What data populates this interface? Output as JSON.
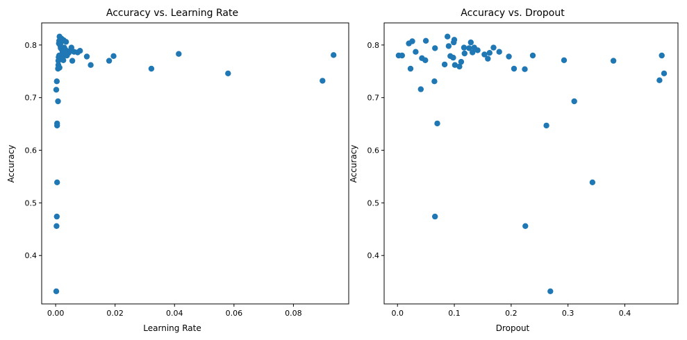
{
  "chart_data": [
    {
      "type": "scatter",
      "title": "Accuracy vs. Learning Rate",
      "xlabel": "Learning Rate",
      "ylabel": "Accuracy",
      "xlim": [
        -0.0047,
        0.0986
      ],
      "ylim": [
        0.308,
        0.842
      ],
      "xticks": [
        0.0,
        0.02,
        0.04,
        0.06,
        0.08
      ],
      "xtick_labels": [
        "0.00",
        "0.02",
        "0.04",
        "0.06",
        "0.08"
      ],
      "yticks": [
        0.4,
        0.5,
        0.6,
        0.7,
        0.8
      ],
      "ytick_labels": [
        "0.4",
        "0.5",
        "0.6",
        "0.7",
        "0.8"
      ],
      "grid": false,
      "color": "#1f77b4",
      "points": [
        {
          "x": 0.0002,
          "y": 0.332
        },
        {
          "x": 0.0003,
          "y": 0.456
        },
        {
          "x": 0.0004,
          "y": 0.474
        },
        {
          "x": 0.0005,
          "y": 0.539
        },
        {
          "x": 0.0005,
          "y": 0.647
        },
        {
          "x": 0.0005,
          "y": 0.651
        },
        {
          "x": 0.0008,
          "y": 0.693
        },
        {
          "x": 0.0002,
          "y": 0.715
        },
        {
          "x": 0.0004,
          "y": 0.731
        },
        {
          "x": 0.0008,
          "y": 0.755
        },
        {
          "x": 0.0009,
          "y": 0.762
        },
        {
          "x": 0.0009,
          "y": 0.77
        },
        {
          "x": 0.001,
          "y": 0.777
        },
        {
          "x": 0.0012,
          "y": 0.78
        },
        {
          "x": 0.0013,
          "y": 0.773
        },
        {
          "x": 0.0013,
          "y": 0.757
        },
        {
          "x": 0.0011,
          "y": 0.803
        },
        {
          "x": 0.0012,
          "y": 0.808
        },
        {
          "x": 0.0013,
          "y": 0.816
        },
        {
          "x": 0.0016,
          "y": 0.798
        },
        {
          "x": 0.0017,
          "y": 0.794
        },
        {
          "x": 0.0018,
          "y": 0.805
        },
        {
          "x": 0.002,
          "y": 0.812
        },
        {
          "x": 0.0022,
          "y": 0.79
        },
        {
          "x": 0.0023,
          "y": 0.785
        },
        {
          "x": 0.0024,
          "y": 0.776
        },
        {
          "x": 0.0026,
          "y": 0.771
        },
        {
          "x": 0.0027,
          "y": 0.809
        },
        {
          "x": 0.0028,
          "y": 0.782
        },
        {
          "x": 0.0029,
          "y": 0.795
        },
        {
          "x": 0.0031,
          "y": 0.786
        },
        {
          "x": 0.0033,
          "y": 0.791
        },
        {
          "x": 0.0035,
          "y": 0.806
        },
        {
          "x": 0.0038,
          "y": 0.78
        },
        {
          "x": 0.0041,
          "y": 0.788
        },
        {
          "x": 0.0044,
          "y": 0.785
        },
        {
          "x": 0.005,
          "y": 0.789
        },
        {
          "x": 0.0053,
          "y": 0.795
        },
        {
          "x": 0.0056,
          "y": 0.77
        },
        {
          "x": 0.0062,
          "y": 0.787
        },
        {
          "x": 0.0074,
          "y": 0.786
        },
        {
          "x": 0.0082,
          "y": 0.789
        },
        {
          "x": 0.0105,
          "y": 0.778
        },
        {
          "x": 0.0118,
          "y": 0.762
        },
        {
          "x": 0.018,
          "y": 0.77
        },
        {
          "x": 0.0195,
          "y": 0.779
        },
        {
          "x": 0.0322,
          "y": 0.755
        },
        {
          "x": 0.0414,
          "y": 0.783
        },
        {
          "x": 0.058,
          "y": 0.746
        },
        {
          "x": 0.0898,
          "y": 0.732
        },
        {
          "x": 0.0935,
          "y": 0.781
        }
      ]
    },
    {
      "type": "scatter",
      "title": "Accuracy vs. Dropout",
      "xlabel": "Dropout",
      "ylabel": "Accuracy",
      "xlim": [
        -0.0235,
        0.4935
      ],
      "ylim": [
        0.308,
        0.842
      ],
      "xticks": [
        0.0,
        0.1,
        0.2,
        0.3,
        0.4
      ],
      "xtick_labels": [
        "0.0",
        "0.1",
        "0.2",
        "0.3",
        "0.4"
      ],
      "yticks": [
        0.4,
        0.5,
        0.6,
        0.7,
        0.8
      ],
      "ytick_labels": [
        "0.4",
        "0.5",
        "0.6",
        "0.7",
        "0.8"
      ],
      "grid": false,
      "color": "#1f77b4",
      "points": [
        {
          "x": 0.002,
          "y": 0.78
        },
        {
          "x": 0.008,
          "y": 0.78
        },
        {
          "x": 0.02,
          "y": 0.803
        },
        {
          "x": 0.023,
          "y": 0.755
        },
        {
          "x": 0.026,
          "y": 0.807
        },
        {
          "x": 0.032,
          "y": 0.787
        },
        {
          "x": 0.041,
          "y": 0.716
        },
        {
          "x": 0.043,
          "y": 0.775
        },
        {
          "x": 0.049,
          "y": 0.771
        },
        {
          "x": 0.05,
          "y": 0.808
        },
        {
          "x": 0.065,
          "y": 0.731
        },
        {
          "x": 0.066,
          "y": 0.794
        },
        {
          "x": 0.066,
          "y": 0.474
        },
        {
          "x": 0.07,
          "y": 0.651
        },
        {
          "x": 0.083,
          "y": 0.763
        },
        {
          "x": 0.088,
          "y": 0.816
        },
        {
          "x": 0.09,
          "y": 0.798
        },
        {
          "x": 0.093,
          "y": 0.779
        },
        {
          "x": 0.098,
          "y": 0.776
        },
        {
          "x": 0.099,
          "y": 0.805
        },
        {
          "x": 0.1,
          "y": 0.81
        },
        {
          "x": 0.101,
          "y": 0.762
        },
        {
          "x": 0.109,
          "y": 0.759
        },
        {
          "x": 0.112,
          "y": 0.768
        },
        {
          "x": 0.117,
          "y": 0.795
        },
        {
          "x": 0.118,
          "y": 0.784
        },
        {
          "x": 0.126,
          "y": 0.794
        },
        {
          "x": 0.129,
          "y": 0.805
        },
        {
          "x": 0.132,
          "y": 0.786
        },
        {
          "x": 0.135,
          "y": 0.795
        },
        {
          "x": 0.141,
          "y": 0.79
        },
        {
          "x": 0.153,
          "y": 0.782
        },
        {
          "x": 0.159,
          "y": 0.774
        },
        {
          "x": 0.162,
          "y": 0.785
        },
        {
          "x": 0.169,
          "y": 0.795
        },
        {
          "x": 0.179,
          "y": 0.787
        },
        {
          "x": 0.196,
          "y": 0.778
        },
        {
          "x": 0.205,
          "y": 0.755
        },
        {
          "x": 0.224,
          "y": 0.754
        },
        {
          "x": 0.225,
          "y": 0.456
        },
        {
          "x": 0.238,
          "y": 0.78
        },
        {
          "x": 0.262,
          "y": 0.647
        },
        {
          "x": 0.269,
          "y": 0.332
        },
        {
          "x": 0.293,
          "y": 0.771
        },
        {
          "x": 0.311,
          "y": 0.693
        },
        {
          "x": 0.343,
          "y": 0.539
        },
        {
          "x": 0.38,
          "y": 0.77
        },
        {
          "x": 0.461,
          "y": 0.733
        },
        {
          "x": 0.465,
          "y": 0.78
        },
        {
          "x": 0.469,
          "y": 0.746
        }
      ]
    }
  ]
}
